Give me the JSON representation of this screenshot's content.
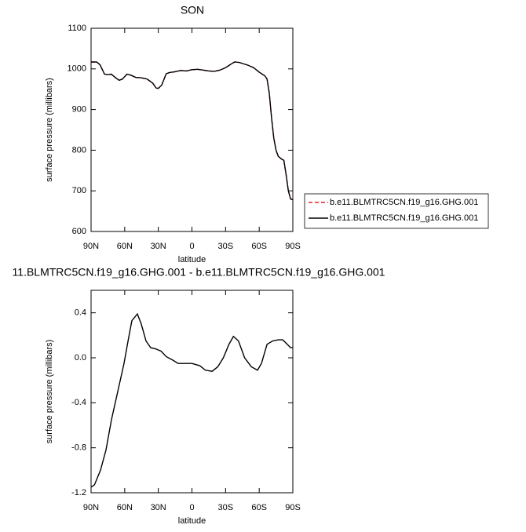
{
  "chart_data": [
    {
      "type": "line",
      "title": "SON",
      "xlabel": "latitude",
      "ylabel": "surface pressure (millibars)",
      "x": [
        90,
        85,
        82,
        78,
        75,
        72,
        68,
        65,
        62,
        58,
        55,
        50,
        45,
        40,
        35,
        32,
        30,
        27,
        23,
        20,
        15,
        10,
        5,
        0,
        -5,
        -10,
        -15,
        -20,
        -25,
        -30,
        -35,
        -38,
        -42,
        -50,
        -55,
        -60,
        -65,
        -67,
        -69,
        -71,
        -73,
        -75,
        -77,
        -80,
        -82,
        -84,
        -86,
        -88,
        -90
      ],
      "series": [
        {
          "name": "b.e11.BLMTRC5CN.f19_g16.GHG.001",
          "color": "#e0262b",
          "dash": true,
          "values": [
            1017,
            1017,
            1010,
            987,
            986,
            987,
            978,
            972,
            975,
            987,
            985,
            979,
            978,
            975,
            965,
            953,
            952,
            960,
            988,
            991,
            993,
            996,
            995,
            998,
            999,
            997,
            995,
            994,
            997,
            1003,
            1012,
            1017,
            1016,
            1009,
            1003,
            992,
            983,
            975,
            940,
            880,
            830,
            800,
            785,
            778,
            775,
            740,
            700,
            680,
            678
          ]
        },
        {
          "name": "b.e11.BLMTRC5CN.f19_g16.GHG.001",
          "color": "#000000",
          "dash": false,
          "values": [
            1017,
            1017,
            1010,
            987,
            986,
            987,
            978,
            972,
            975,
            987,
            985,
            979,
            978,
            975,
            965,
            953,
            952,
            960,
            988,
            991,
            993,
            996,
            995,
            998,
            999,
            997,
            995,
            994,
            997,
            1003,
            1012,
            1017,
            1016,
            1009,
            1003,
            992,
            983,
            975,
            940,
            880,
            830,
            800,
            785,
            778,
            775,
            740,
            700,
            680,
            678
          ]
        }
      ],
      "xlim": [
        90,
        -90
      ],
      "xticks": [
        {
          "value": 90,
          "label": "90N"
        },
        {
          "value": 60,
          "label": "60N"
        },
        {
          "value": 30,
          "label": "30N"
        },
        0,
        {
          "value": -30,
          "label": "30S"
        },
        {
          "value": -60,
          "label": "60S"
        },
        {
          "value": -90,
          "label": "90S"
        }
      ],
      "ylim": [
        600,
        1100
      ],
      "yticks": [
        600,
        700,
        800,
        900,
        1000,
        1100
      ],
      "legend": "outside-right"
    },
    {
      "type": "line",
      "title": "11.BLMTRC5CN.f19_g16.GHG.001 - b.e11.BLMTRC5CN.f19_g16.GHG.001",
      "xlabel": "latitude",
      "ylabel": "surface pressure (millibars)",
      "x": [
        90,
        87,
        81.6,
        76.7,
        71.8,
        66.2,
        60.6,
        57,
        53.6,
        48.7,
        45.2,
        41,
        36.8,
        32.6,
        27.7,
        22.8,
        17.2,
        12.3,
        6.7,
        0,
        -7,
        -12,
        -18,
        -23,
        -28,
        -33,
        -37,
        -41.5,
        -47,
        -53,
        -58.5,
        -62,
        -67,
        -72,
        -77,
        -81,
        -85,
        -88,
        -90
      ],
      "series": [
        {
          "color": "#000000",
          "dash": false,
          "values": [
            -1.15,
            -1.13,
            -1.0,
            -0.82,
            -0.55,
            -0.3,
            -0.05,
            0.15,
            0.33,
            0.39,
            0.3,
            0.15,
            0.09,
            0.08,
            0.06,
            0.01,
            -0.02,
            -0.05,
            -0.05,
            -0.05,
            -0.07,
            -0.11,
            -0.12,
            -0.08,
            0.0,
            0.12,
            0.19,
            0.15,
            0.0,
            -0.08,
            -0.11,
            -0.05,
            0.12,
            0.15,
            0.16,
            0.16,
            0.12,
            0.09,
            0.09
          ]
        }
      ],
      "xlim": [
        90,
        -90
      ],
      "xticks": [
        {
          "value": 90,
          "label": "90N"
        },
        {
          "value": 60,
          "label": "60N"
        },
        {
          "value": 30,
          "label": "30N"
        },
        0,
        {
          "value": -30,
          "label": "30S"
        },
        {
          "value": -60,
          "label": "60S"
        },
        {
          "value": -90,
          "label": "90S"
        }
      ],
      "ylim": [
        -1.2,
        0.6
      ],
      "yticks": [
        -1.2,
        -0.8,
        -0.4,
        {
          "value": 0,
          "label": "0.0"
        },
        0.4
      ]
    }
  ]
}
